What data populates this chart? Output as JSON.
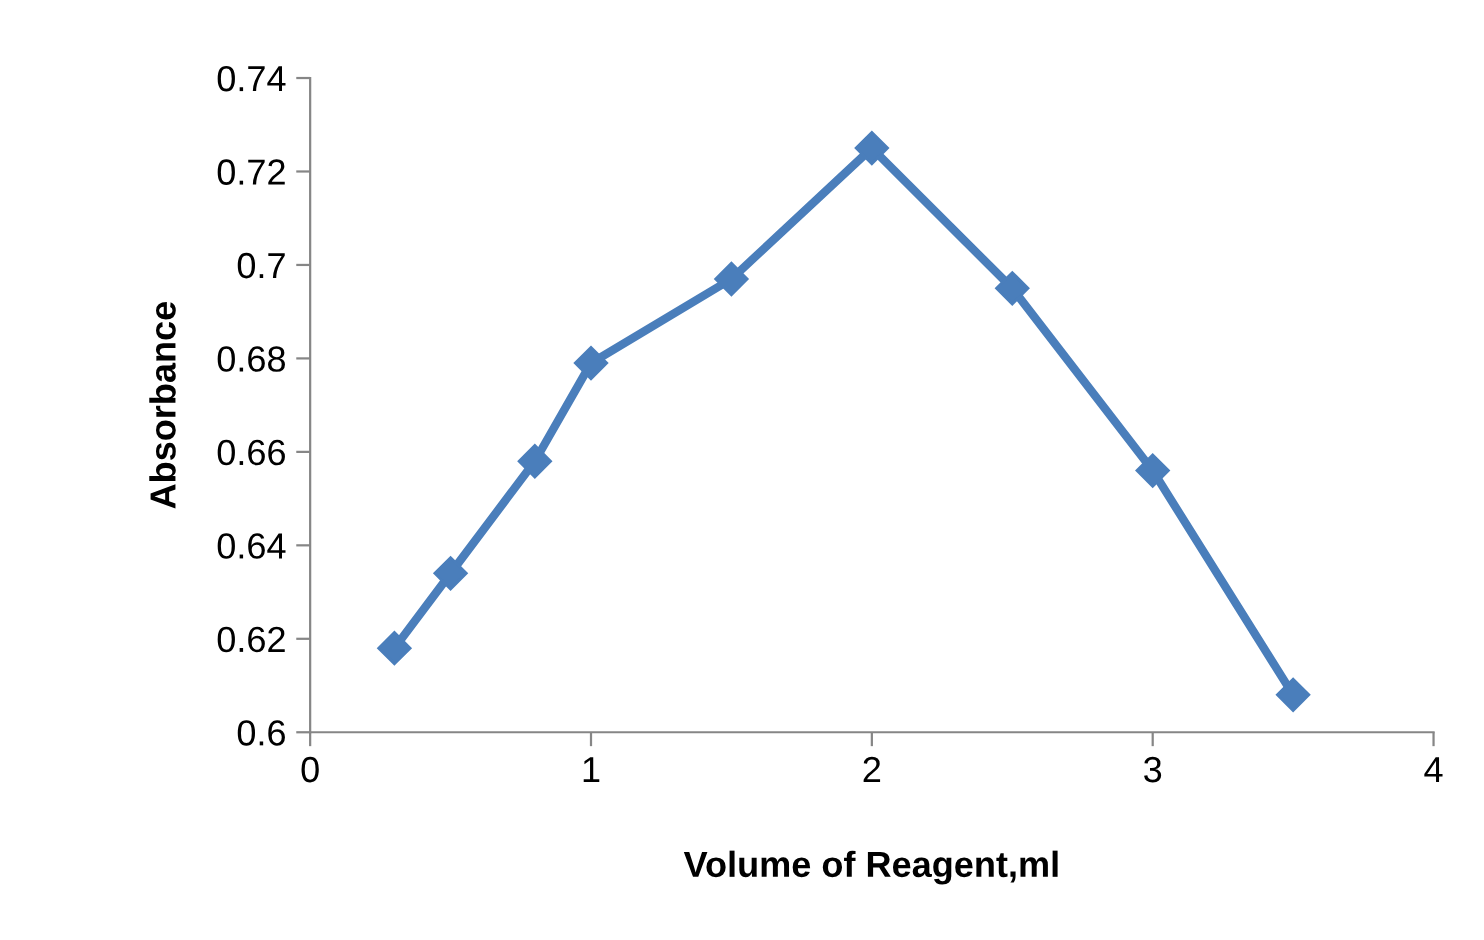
{
  "chart_data": {
    "type": "line",
    "xlabel": "Volume of Reagent,ml",
    "ylabel": "Absorbance",
    "x": [
      0.3,
      0.5,
      0.8,
      1,
      1.5,
      2,
      2.5,
      3,
      3.5
    ],
    "series": [
      {
        "color": "#4a7ebb",
        "values": [
          0.618,
          0.634,
          0.658,
          0.679,
          0.697,
          0.725,
          0.695,
          0.656,
          0.608
        ]
      }
    ],
    "xlim": [
      0,
      4
    ],
    "xticks": [
      0,
      1,
      2,
      3,
      4
    ],
    "ylim": [
      0.6,
      0.74
    ],
    "yticks": [
      0.6,
      0.62,
      0.64,
      0.66,
      0.68,
      0.7,
      0.72,
      0.74
    ],
    "marker": "diamond",
    "line_style": "solid",
    "grid": false,
    "legend": false
  }
}
